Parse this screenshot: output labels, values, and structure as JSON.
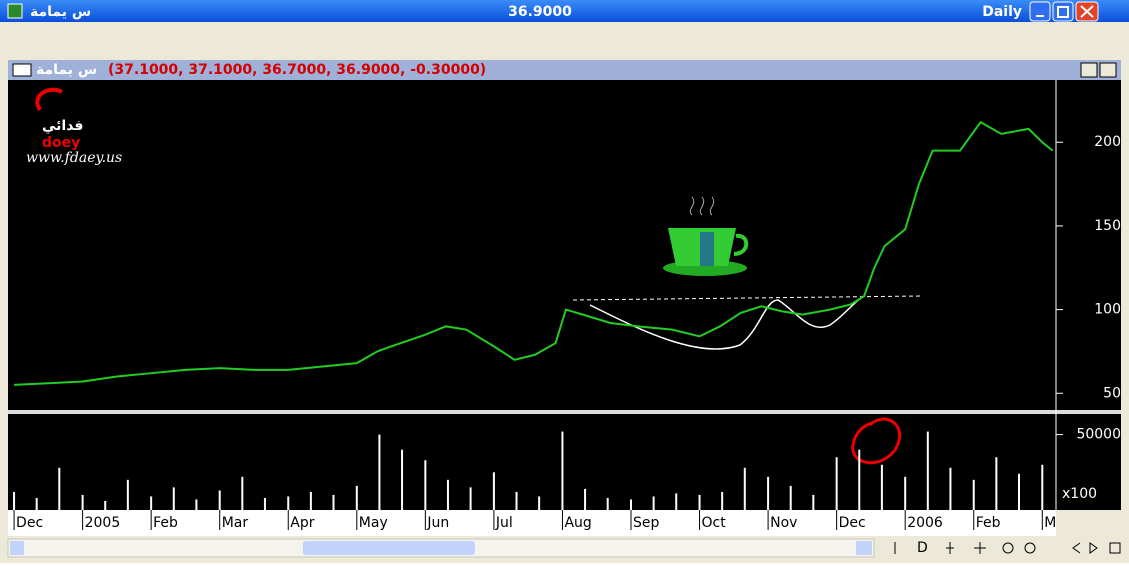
{
  "window": {
    "title": "س يمامة",
    "price": "36.9000",
    "period": "Daily"
  },
  "subbar": {
    "name": "س يمامة",
    "ohlc": "(37.1000, 37.1000, 36.7000, 36.9000, -0.30000)"
  },
  "logo": {
    "arabic": "فدائي",
    "latin": "doey",
    "url": "www.fdaey.us"
  },
  "toolbar": {
    "d": "D"
  },
  "chart_data": [
    {
      "type": "line",
      "color": "#22cc22",
      "x": [
        0,
        0.5,
        1,
        1.5,
        2,
        2.5,
        3,
        3.5,
        4,
        4.5,
        5,
        5.3,
        5.5,
        6,
        6.3,
        6.6,
        7,
        7.3,
        7.6,
        7.9,
        8.05,
        8.3,
        8.7,
        9.1,
        9.6,
        10,
        10.3,
        10.6,
        10.9,
        11.2,
        11.5,
        11.9,
        12.2,
        12.4,
        12.55,
        12.7,
        13,
        13.2,
        13.4,
        13.8,
        14.1,
        14.4,
        14.8,
        15,
        15.15
      ],
      "values": [
        55,
        56,
        57,
        60,
        62,
        64,
        65,
        64,
        64,
        66,
        68,
        75,
        78,
        85,
        90,
        88,
        78,
        70,
        73,
        80,
        100,
        97,
        92,
        90,
        88,
        84,
        90,
        98,
        102,
        99,
        97,
        100,
        103,
        108,
        125,
        138,
        148,
        175,
        195,
        195,
        212,
        205,
        208,
        200,
        195
      ],
      "xlim": [
        -0.03,
        15.2
      ],
      "ylim": [
        40,
        236
      ],
      "yticks": [
        50,
        100,
        150,
        200
      ]
    },
    {
      "type": "bar",
      "color": "#ffffff",
      "scale_note": "x100",
      "x": [
        0,
        0.33,
        0.66,
        1,
        1.33,
        1.66,
        2,
        2.33,
        2.66,
        3,
        3.33,
        3.66,
        4,
        4.33,
        4.66,
        5,
        5.33,
        5.66,
        6,
        6.33,
        6.66,
        7,
        7.33,
        7.66,
        8,
        8.33,
        8.66,
        9,
        9.33,
        9.66,
        10,
        10.33,
        10.66,
        11,
        11.33,
        11.66,
        12,
        12.33,
        12.66,
        13,
        13.33,
        13.66,
        14,
        14.33,
        14.66,
        15
      ],
      "values": [
        12000,
        8000,
        28000,
        10000,
        6000,
        20000,
        9000,
        15000,
        7000,
        13000,
        22000,
        8000,
        9000,
        12000,
        10000,
        16000,
        50000,
        40000,
        33000,
        20000,
        15000,
        25000,
        12000,
        9000,
        52000,
        14000,
        8000,
        7000,
        9000,
        11000,
        10000,
        12000,
        28000,
        22000,
        16000,
        10000,
        35000,
        40000,
        30000,
        22000,
        52000,
        28000,
        20000,
        35000,
        24000,
        30000
      ],
      "xlim": [
        -0.03,
        15.2
      ],
      "ylim": [
        0,
        61000
      ],
      "yticks": [
        50000
      ],
      "xticks": [
        {
          "value": 0,
          "label": "Dec"
        },
        {
          "value": 1,
          "label": "2005"
        },
        {
          "value": 2,
          "label": "Feb"
        },
        {
          "value": 3,
          "label": "Mar"
        },
        {
          "value": 4,
          "label": "Apr"
        },
        {
          "value": 5,
          "label": "May"
        },
        {
          "value": 6,
          "label": "Jun"
        },
        {
          "value": 7,
          "label": "Jul"
        },
        {
          "value": 8,
          "label": "Aug"
        },
        {
          "value": 9,
          "label": "Sep"
        },
        {
          "value": 10,
          "label": "Oct"
        },
        {
          "value": 11,
          "label": "Nov"
        },
        {
          "value": 12,
          "label": "Dec"
        },
        {
          "value": 13,
          "label": "2006"
        },
        {
          "value": 14,
          "label": "Feb"
        },
        {
          "value": 15,
          "label": "M"
        }
      ]
    }
  ]
}
